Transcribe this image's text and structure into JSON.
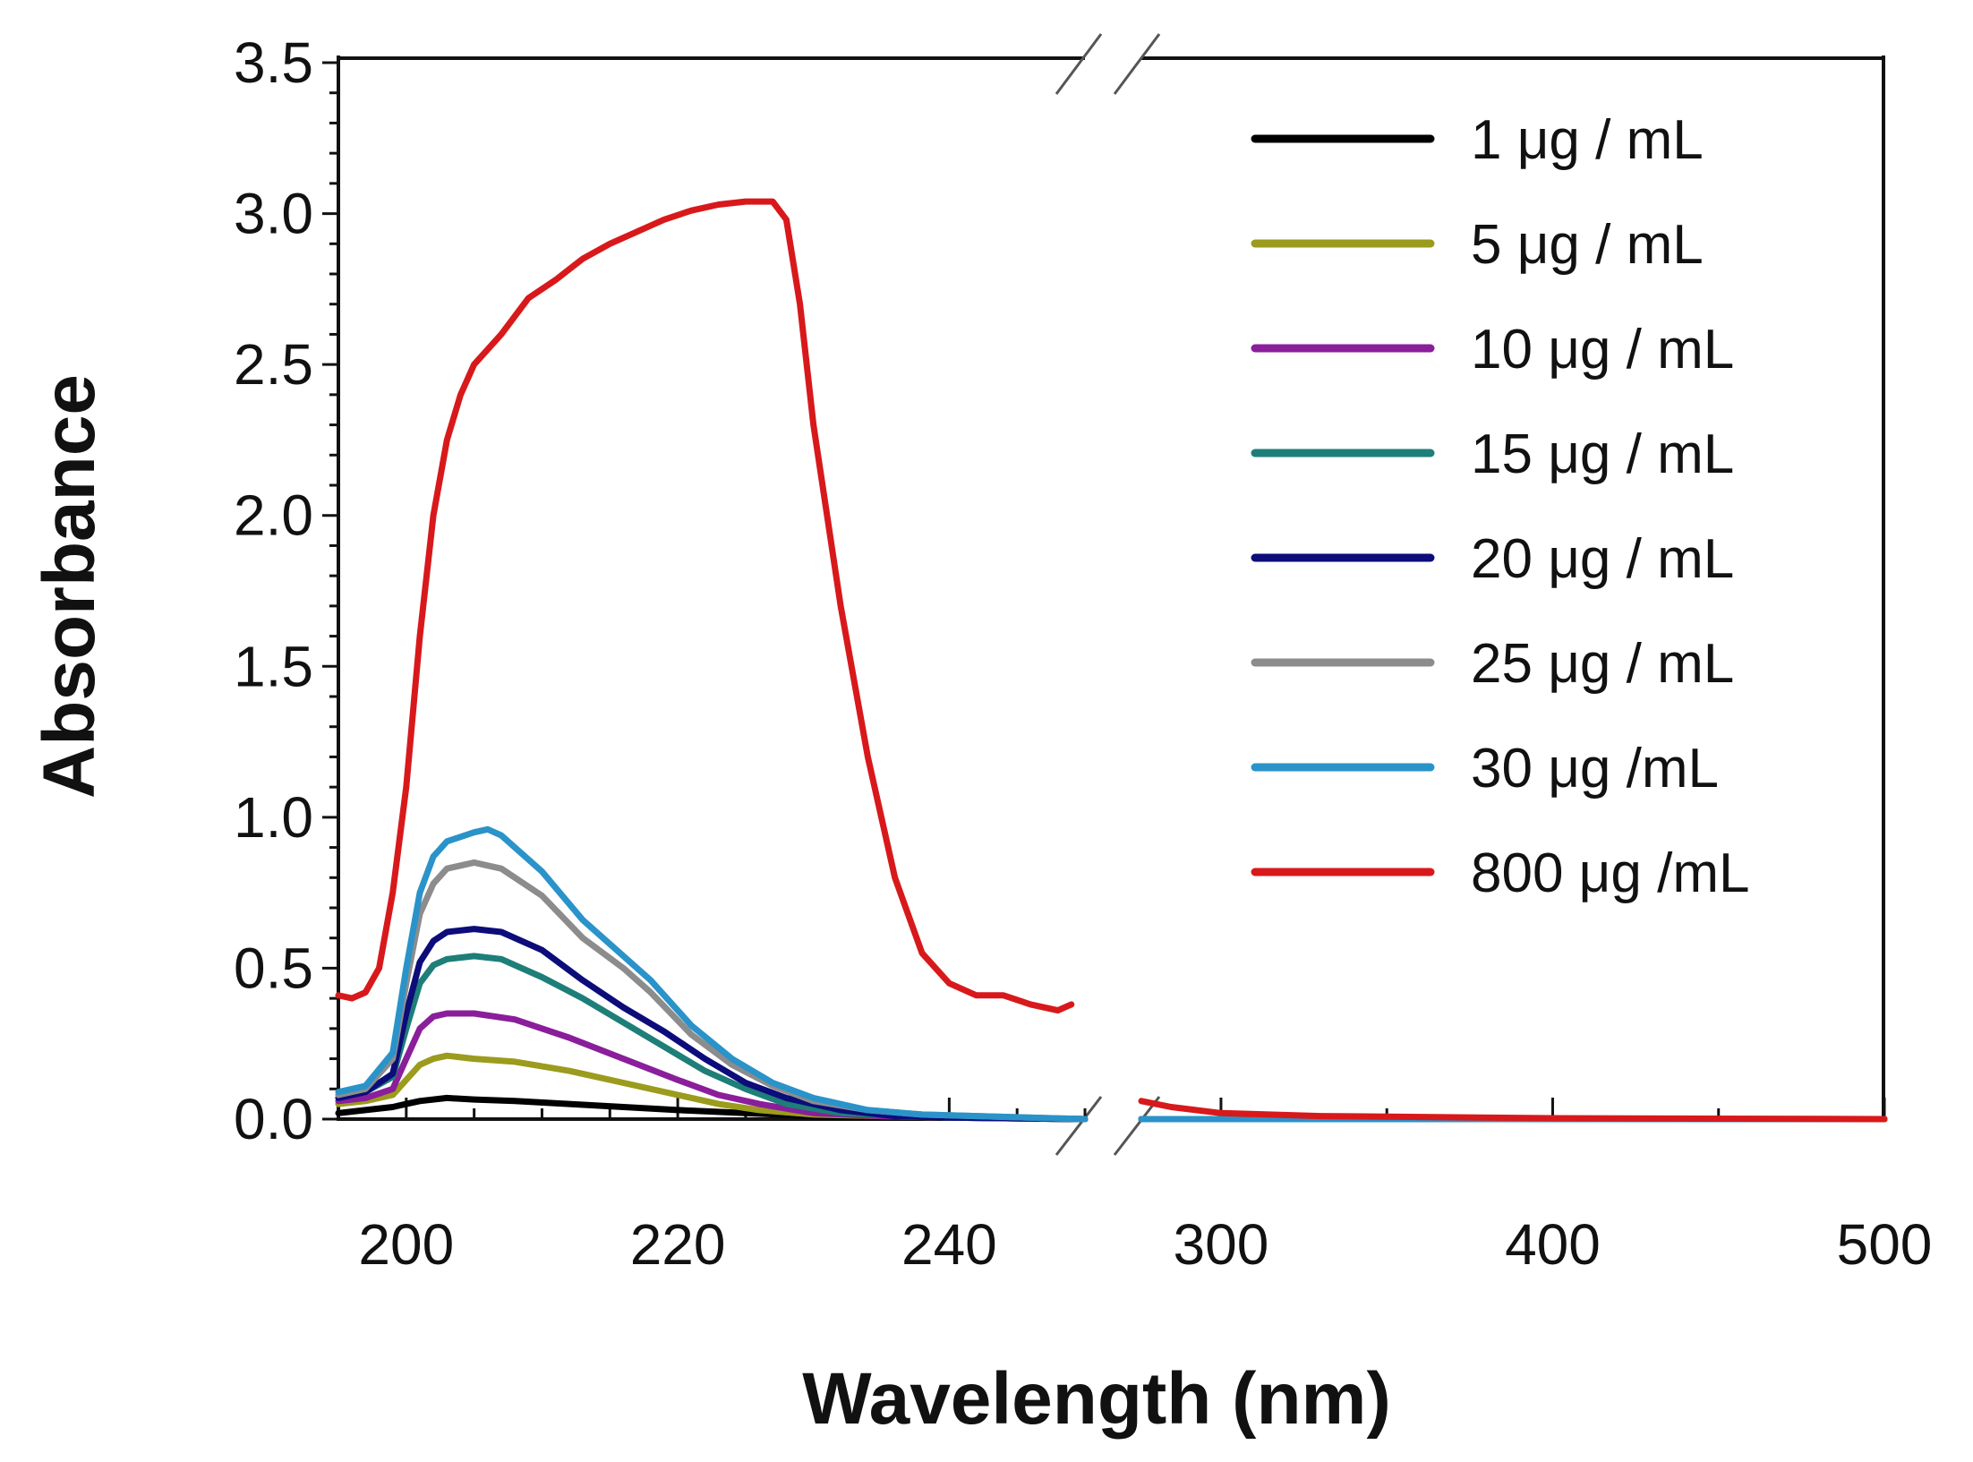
{
  "chart_data": {
    "type": "line",
    "title": "",
    "xlabel": "Wavelength (nm)",
    "ylabel": "Absorbance",
    "x_axis_break": {
      "from": 250,
      "to": 276
    },
    "x_segments": [
      {
        "range": [
          195,
          250
        ],
        "ticks": [
          200,
          220,
          240
        ],
        "minor_step": 5
      },
      {
        "range": [
          276,
          500
        ],
        "ticks": [
          300,
          400,
          500
        ],
        "minor_step": 50
      }
    ],
    "ylim": [
      0,
      3.5
    ],
    "yticks": [
      "0.0",
      "0.5",
      "1.0",
      "1.5",
      "2.0",
      "2.5",
      "3.0",
      "3.5"
    ],
    "y_minor_step": 0.1,
    "legend_position": "top-right",
    "series": [
      {
        "name": "1 μg / mL",
        "color": "#000000",
        "points": [
          [
            195,
            0.02
          ],
          [
            197,
            0.03
          ],
          [
            199,
            0.04
          ],
          [
            200,
            0.05
          ],
          [
            201,
            0.06
          ],
          [
            203,
            0.07
          ],
          [
            205,
            0.065
          ],
          [
            208,
            0.06
          ],
          [
            212,
            0.05
          ],
          [
            216,
            0.04
          ],
          [
            220,
            0.03
          ],
          [
            225,
            0.02
          ],
          [
            230,
            0.01
          ],
          [
            240,
            0.005
          ],
          [
            250,
            0.0
          ],
          [
            276,
            0.0
          ],
          [
            300,
            0.0
          ],
          [
            400,
            0.0
          ],
          [
            500,
            0.0
          ]
        ]
      },
      {
        "name": "5 μg / mL",
        "color": "#9b9b1e",
        "points": [
          [
            195,
            0.05
          ],
          [
            197,
            0.06
          ],
          [
            199,
            0.08
          ],
          [
            200,
            0.13
          ],
          [
            201,
            0.18
          ],
          [
            202,
            0.2
          ],
          [
            203,
            0.21
          ],
          [
            205,
            0.2
          ],
          [
            208,
            0.19
          ],
          [
            212,
            0.16
          ],
          [
            216,
            0.12
          ],
          [
            220,
            0.08
          ],
          [
            223,
            0.05
          ],
          [
            226,
            0.03
          ],
          [
            230,
            0.015
          ],
          [
            240,
            0.005
          ],
          [
            250,
            0.0
          ],
          [
            276,
            0.0
          ],
          [
            300,
            0.0
          ],
          [
            400,
            0.0
          ],
          [
            500,
            0.0
          ]
        ]
      },
      {
        "name": "10 μg / mL",
        "color": "#8a1e9b",
        "points": [
          [
            195,
            0.06
          ],
          [
            197,
            0.07
          ],
          [
            199,
            0.1
          ],
          [
            200,
            0.2
          ],
          [
            201,
            0.3
          ],
          [
            202,
            0.34
          ],
          [
            203,
            0.35
          ],
          [
            205,
            0.35
          ],
          [
            208,
            0.33
          ],
          [
            212,
            0.27
          ],
          [
            216,
            0.2
          ],
          [
            220,
            0.13
          ],
          [
            223,
            0.08
          ],
          [
            226,
            0.05
          ],
          [
            230,
            0.02
          ],
          [
            235,
            0.01
          ],
          [
            240,
            0.005
          ],
          [
            250,
            0.0
          ],
          [
            276,
            0.0
          ],
          [
            300,
            0.0
          ],
          [
            400,
            0.0
          ],
          [
            500,
            0.0
          ]
        ]
      },
      {
        "name": "15 μg / mL",
        "color": "#1e7e78",
        "points": [
          [
            195,
            0.07
          ],
          [
            197,
            0.09
          ],
          [
            199,
            0.14
          ],
          [
            200,
            0.3
          ],
          [
            201,
            0.45
          ],
          [
            202,
            0.51
          ],
          [
            203,
            0.53
          ],
          [
            205,
            0.54
          ],
          [
            207,
            0.53
          ],
          [
            210,
            0.47
          ],
          [
            213,
            0.4
          ],
          [
            216,
            0.32
          ],
          [
            219,
            0.24
          ],
          [
            222,
            0.16
          ],
          [
            225,
            0.1
          ],
          [
            228,
            0.05
          ],
          [
            232,
            0.02
          ],
          [
            240,
            0.005
          ],
          [
            250,
            0.0
          ],
          [
            276,
            0.0
          ],
          [
            300,
            0.0
          ],
          [
            400,
            0.0
          ],
          [
            500,
            0.0
          ]
        ]
      },
      {
        "name": "20 μg / mL",
        "color": "#0c0c7a",
        "points": [
          [
            195,
            0.07
          ],
          [
            197,
            0.09
          ],
          [
            199,
            0.15
          ],
          [
            200,
            0.35
          ],
          [
            201,
            0.52
          ],
          [
            202,
            0.59
          ],
          [
            203,
            0.62
          ],
          [
            205,
            0.63
          ],
          [
            207,
            0.62
          ],
          [
            210,
            0.56
          ],
          [
            213,
            0.46
          ],
          [
            216,
            0.37
          ],
          [
            219,
            0.29
          ],
          [
            222,
            0.2
          ],
          [
            225,
            0.12
          ],
          [
            228,
            0.07
          ],
          [
            232,
            0.03
          ],
          [
            236,
            0.01
          ],
          [
            240,
            0.005
          ],
          [
            250,
            0.0
          ],
          [
            276,
            0.0
          ],
          [
            300,
            0.0
          ],
          [
            400,
            0.0
          ],
          [
            500,
            0.0
          ]
        ]
      },
      {
        "name": "25 μg / mL",
        "color": "#8c8c8c",
        "points": [
          [
            195,
            0.08
          ],
          [
            197,
            0.1
          ],
          [
            199,
            0.2
          ],
          [
            200,
            0.45
          ],
          [
            201,
            0.68
          ],
          [
            202,
            0.78
          ],
          [
            203,
            0.83
          ],
          [
            205,
            0.85
          ],
          [
            207,
            0.83
          ],
          [
            210,
            0.74
          ],
          [
            213,
            0.6
          ],
          [
            216,
            0.5
          ],
          [
            218,
            0.42
          ],
          [
            221,
            0.28
          ],
          [
            224,
            0.18
          ],
          [
            227,
            0.11
          ],
          [
            230,
            0.06
          ],
          [
            234,
            0.03
          ],
          [
            238,
            0.015
          ],
          [
            242,
            0.01
          ],
          [
            250,
            0.0
          ],
          [
            276,
            0.0
          ],
          [
            300,
            0.0
          ],
          [
            400,
            0.0
          ],
          [
            500,
            0.0
          ]
        ]
      },
      {
        "name": "30 μg  /mL",
        "color": "#2a93c9",
        "points": [
          [
            195,
            0.09
          ],
          [
            197,
            0.11
          ],
          [
            199,
            0.22
          ],
          [
            200,
            0.5
          ],
          [
            201,
            0.75
          ],
          [
            202,
            0.87
          ],
          [
            203,
            0.92
          ],
          [
            205,
            0.95
          ],
          [
            206,
            0.96
          ],
          [
            207,
            0.94
          ],
          [
            210,
            0.82
          ],
          [
            213,
            0.66
          ],
          [
            216,
            0.54
          ],
          [
            218,
            0.46
          ],
          [
            221,
            0.31
          ],
          [
            224,
            0.2
          ],
          [
            227,
            0.12
          ],
          [
            230,
            0.07
          ],
          [
            234,
            0.03
          ],
          [
            238,
            0.015
          ],
          [
            242,
            0.01
          ],
          [
            250,
            0.0
          ],
          [
            276,
            0.0
          ],
          [
            300,
            0.0
          ],
          [
            400,
            0.0
          ],
          [
            500,
            0.0
          ]
        ]
      },
      {
        "name": "800 μg  /mL",
        "color": "#d8191b",
        "points": [
          [
            195,
            0.41
          ],
          [
            196,
            0.4
          ],
          [
            197,
            0.42
          ],
          [
            198,
            0.5
          ],
          [
            199,
            0.75
          ],
          [
            200,
            1.1
          ],
          [
            201,
            1.6
          ],
          [
            202,
            2.0
          ],
          [
            203,
            2.25
          ],
          [
            204,
            2.4
          ],
          [
            205,
            2.5
          ],
          [
            207,
            2.6
          ],
          [
            209,
            2.72
          ],
          [
            211,
            2.78
          ],
          [
            213,
            2.85
          ],
          [
            215,
            2.9
          ],
          [
            217,
            2.94
          ],
          [
            219,
            2.98
          ],
          [
            221,
            3.01
          ],
          [
            223,
            3.03
          ],
          [
            225,
            3.04
          ],
          [
            227,
            3.04
          ],
          [
            228,
            2.98
          ],
          [
            229,
            2.7
          ],
          [
            230,
            2.3
          ],
          [
            232,
            1.7
          ],
          [
            234,
            1.2
          ],
          [
            236,
            0.8
          ],
          [
            238,
            0.55
          ],
          [
            240,
            0.45
          ],
          [
            242,
            0.41
          ],
          [
            244,
            0.41
          ],
          [
            246,
            0.38
          ],
          [
            248,
            0.36
          ],
          [
            249,
            0.38
          ],
          [
            276,
            0.06
          ],
          [
            285,
            0.04
          ],
          [
            300,
            0.02
          ],
          [
            330,
            0.01
          ],
          [
            400,
            0.003
          ],
          [
            500,
            0.0
          ]
        ]
      }
    ]
  }
}
